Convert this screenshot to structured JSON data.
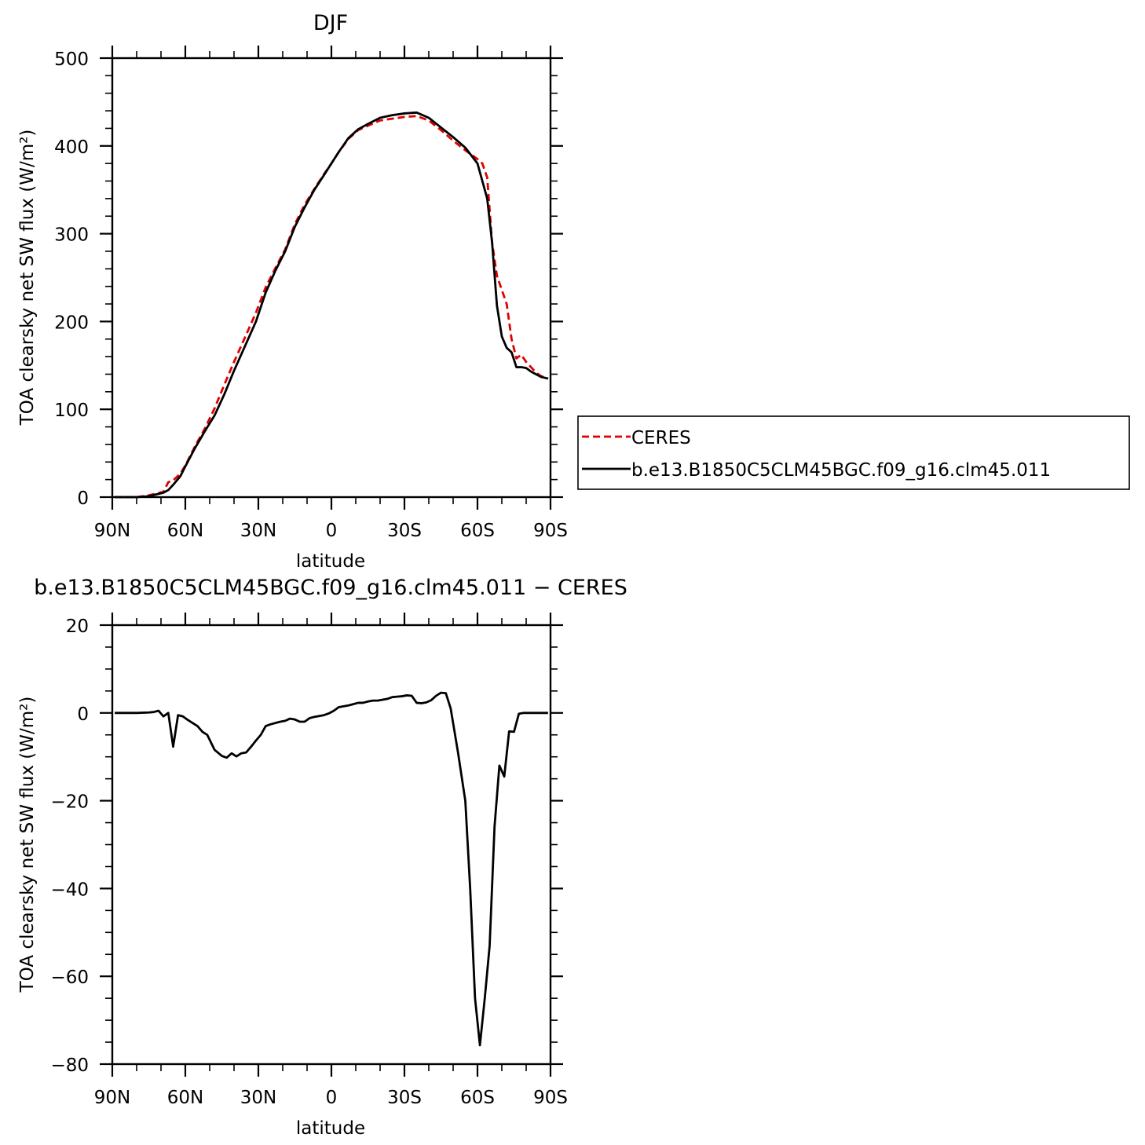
{
  "chart_data": [
    {
      "type": "line",
      "title": "DJF",
      "xlabel": "latitude",
      "ylabel": "TOA clearsky net SW flux (W/m²)",
      "x_unit": "degrees latitude (north positive)",
      "xlim": [
        90,
        -90
      ],
      "ylim": [
        0,
        500
      ],
      "x_ticks": [
        {
          "value": 90,
          "label": "90N"
        },
        {
          "value": 60,
          "label": "60N"
        },
        {
          "value": 30,
          "label": "30N"
        },
        {
          "value": 0,
          "label": "0"
        },
        {
          "value": -30,
          "label": "30S"
        },
        {
          "value": -60,
          "label": "60S"
        },
        {
          "value": -90,
          "label": "90S"
        }
      ],
      "y_ticks": [
        {
          "value": 0,
          "label": "0"
        },
        {
          "value": 100,
          "label": "100"
        },
        {
          "value": 200,
          "label": "200"
        },
        {
          "value": 300,
          "label": "300"
        },
        {
          "value": 400,
          "label": "400"
        },
        {
          "value": 500,
          "label": "500"
        }
      ],
      "grid": false,
      "legend_position": "right",
      "series": [
        {
          "name": "CERES",
          "color": "#e00000",
          "dash": "dashed",
          "x": [
            89,
            85,
            80,
            75,
            72,
            69,
            67,
            65,
            62,
            60,
            56,
            52,
            48,
            44,
            40,
            35,
            31,
            27,
            23,
            19,
            15,
            11,
            7,
            3,
            0,
            -3,
            -7,
            -11,
            -15,
            -20,
            -25,
            -30,
            -35,
            -40,
            -45,
            -50,
            -55,
            -60,
            -62,
            -64,
            -66,
            -68,
            -70,
            -72,
            -74,
            -76,
            -78,
            -80,
            -82,
            -84,
            -86,
            -89
          ],
          "values": [
            0,
            0,
            0,
            2,
            4,
            6,
            17,
            19,
            27,
            36,
            58,
            78,
            101,
            128,
            154,
            185,
            210,
            239,
            261,
            282,
            311,
            333,
            351,
            368,
            380,
            393,
            408,
            418,
            423,
            429,
            431,
            433,
            434,
            429,
            418,
            406,
            395,
            385,
            380,
            364,
            290,
            252,
            236,
            220,
            180,
            158,
            162,
            154,
            148,
            142,
            138,
            135
          ]
        },
        {
          "name": "b.e13.B1850C5CLM45BGC.f09_g16.clm45.011",
          "color": "#000000",
          "dash": "solid",
          "x": [
            89,
            85,
            80,
            75,
            72,
            69,
            67,
            65,
            62,
            60,
            56,
            52,
            48,
            44,
            40,
            35,
            31,
            27,
            23,
            19,
            15,
            11,
            7,
            3,
            0,
            -3,
            -7,
            -11,
            -15,
            -20,
            -25,
            -30,
            -35,
            -40,
            -45,
            -50,
            -55,
            -60,
            -62,
            -64,
            -66,
            -68,
            -70,
            -72,
            -74,
            -76,
            -78,
            -80,
            -82,
            -84,
            -86,
            -89
          ],
          "values": [
            0,
            0,
            0,
            1,
            3,
            5,
            8,
            14,
            24,
            35,
            56,
            75,
            93,
            117,
            144,
            175,
            200,
            233,
            258,
            280,
            308,
            330,
            350,
            367,
            380,
            393,
            409,
            419,
            425,
            432,
            435,
            437,
            438,
            432,
            421,
            410,
            398,
            380,
            360,
            340,
            290,
            218,
            183,
            170,
            165,
            148,
            148,
            147,
            143,
            140,
            137,
            135
          ]
        }
      ]
    },
    {
      "type": "line",
      "title": "b.e13.B1850C5CLM45BGC.f09_g16.clm45.011  − CERES",
      "xlabel": "latitude",
      "ylabel": "TOA clearsky net SW flux (W/m²)",
      "x_unit": "degrees latitude (north positive)",
      "xlim": [
        90,
        -90
      ],
      "ylim": [
        -80,
        20
      ],
      "x_ticks": [
        {
          "value": 90,
          "label": "90N"
        },
        {
          "value": 60,
          "label": "60N"
        },
        {
          "value": 30,
          "label": "30N"
        },
        {
          "value": 0,
          "label": "0"
        },
        {
          "value": -30,
          "label": "30S"
        },
        {
          "value": -60,
          "label": "60S"
        },
        {
          "value": -90,
          "label": "90S"
        }
      ],
      "y_ticks": [
        {
          "value": -80,
          "label": "−80"
        },
        {
          "value": -60,
          "label": "−60"
        },
        {
          "value": -40,
          "label": "−40"
        },
        {
          "value": -20,
          "label": "−20"
        },
        {
          "value": 0,
          "label": "0"
        },
        {
          "value": 20,
          "label": "20"
        }
      ],
      "grid": false,
      "series": [
        {
          "color": "#000000",
          "dash": "solid",
          "x": [
            89,
            85,
            80,
            75,
            73,
            71,
            69,
            67,
            65,
            63,
            61,
            59,
            57,
            55,
            53,
            51,
            48,
            45,
            43,
            41,
            39,
            37,
            35,
            33,
            31,
            29,
            27,
            25,
            23,
            21,
            19,
            17,
            15,
            13,
            11,
            9,
            7,
            5,
            3,
            1,
            -1,
            -3,
            -5,
            -7,
            -9,
            -11,
            -13,
            -15,
            -17,
            -19,
            -21,
            -23,
            -25,
            -27,
            -29,
            -31,
            -33,
            -35,
            -37,
            -39,
            -41,
            -43,
            -45,
            -47,
            -49,
            -52,
            -55,
            -57,
            -59,
            -61,
            -63,
            -65,
            -67,
            -69,
            -71,
            -73,
            -75,
            -77,
            -79,
            -81,
            -83,
            -85,
            -87,
            -89
          ],
          "values": [
            0,
            0,
            0,
            0.1,
            0.2,
            0.5,
            -0.8,
            0,
            -7.7,
            -0.5,
            -0.8,
            -1.6,
            -2.3,
            -3,
            -4.3,
            -5,
            -8.4,
            -9.8,
            -10.2,
            -9.2,
            -9.9,
            -9.2,
            -9,
            -7.7,
            -6.3,
            -5,
            -3,
            -2.6,
            -2.3,
            -2,
            -1.8,
            -1.3,
            -1.5,
            -2,
            -2,
            -1.2,
            -0.9,
            -0.7,
            -0.5,
            -0.1,
            0.5,
            1.3,
            1.5,
            1.7,
            2,
            2.3,
            2.3,
            2.6,
            2.8,
            2.8,
            3,
            3.2,
            3.6,
            3.7,
            3.8,
            4,
            3.9,
            2.3,
            2.2,
            2.4,
            2.9,
            3.9,
            4.6,
            4.5,
            1,
            -9,
            -20,
            -40,
            -65,
            -75.7,
            -65,
            -53,
            -26,
            -12,
            -14.5,
            -4.2,
            -4.3,
            -0.2,
            0,
            0,
            0,
            0,
            0,
            0
          ]
        }
      ]
    }
  ]
}
